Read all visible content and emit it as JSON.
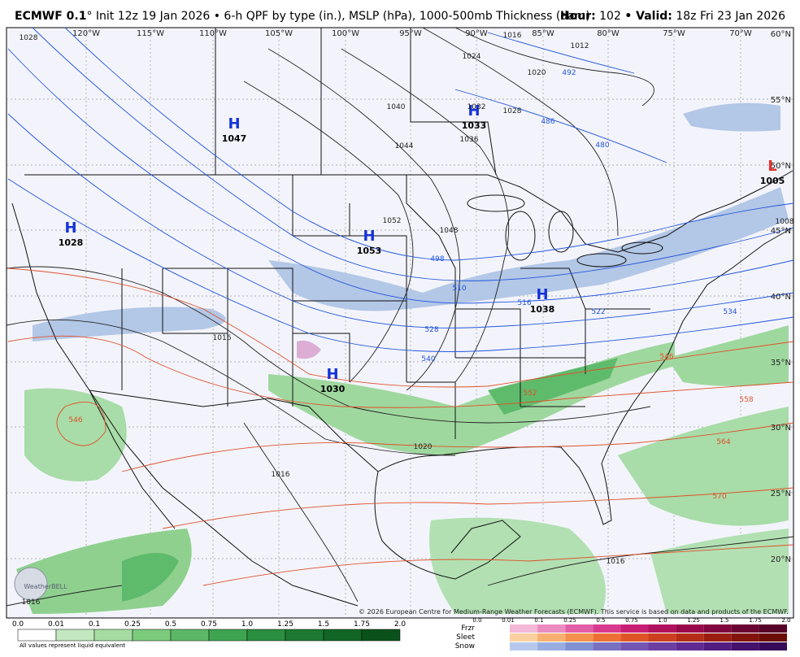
{
  "header": {
    "model": "ECMWF 0.1",
    "description": "° Init 12z 19 Jan 2026 • 6-h QPF by type (in.), MSLP (hPa), 1000-500mb Thickness (dam)",
    "hour_label": "Hour:",
    "hour": "102",
    "valid_label": "• Valid:",
    "valid": "18z Fri 23 Jan 2026"
  },
  "map": {
    "longitude_labels": [
      "120°W",
      "115°W",
      "110°W",
      "105°W",
      "100°W",
      "95°W",
      "90°W",
      "85°W",
      "80°W",
      "75°W",
      "70°W"
    ],
    "latitude_labels": [
      "60°N",
      "55°N",
      "50°N",
      "45°N",
      "40°N",
      "35°N",
      "30°N",
      "25°N",
      "20°N"
    ],
    "pressure_centers": [
      {
        "letter": "H",
        "value": "1047"
      },
      {
        "letter": "H",
        "value": "1028"
      },
      {
        "letter": "H",
        "value": "1053"
      },
      {
        "letter": "H",
        "value": "1033"
      },
      {
        "letter": "H",
        "value": "1038"
      },
      {
        "letter": "H",
        "value": "1030"
      },
      {
        "letter": "L",
        "value": "1005"
      }
    ],
    "isobar_labels": [
      "1028",
      "1016",
      "1012",
      "1024",
      "1020",
      "1040",
      "1032",
      "1028",
      "1036",
      "1044",
      "1052",
      "1048",
      "1016",
      "1020",
      "1016",
      "1016",
      "1016",
      "1008"
    ],
    "thickness_labels": [
      "492",
      "486",
      "480",
      "498",
      "510",
      "516",
      "522",
      "528",
      "534",
      "540",
      "546",
      "552",
      "558",
      "564",
      "570",
      "546"
    ],
    "brand": "WeatherBELL",
    "copyright": "© 2026 European Centre for Medium-Range Weather Forecasts (ECMWF). This service is based on data and products of the ECMWF."
  },
  "legend": {
    "rain_ticks": [
      "0.0",
      "0.01",
      "0.1",
      "0.25",
      "0.5",
      "0.75",
      "1.0",
      "1.25",
      "1.5",
      "1.75",
      "2.0"
    ],
    "note": "All values represent liquid equivalent",
    "type_rows": [
      "Frzr",
      "Sleet",
      "Snow"
    ],
    "type_ticks": [
      "0.0",
      "0.01",
      "0.1",
      "0.25",
      "0.5",
      "0.75",
      "1.0",
      "1.25",
      "1.5",
      "1.75",
      "2.0"
    ]
  }
}
